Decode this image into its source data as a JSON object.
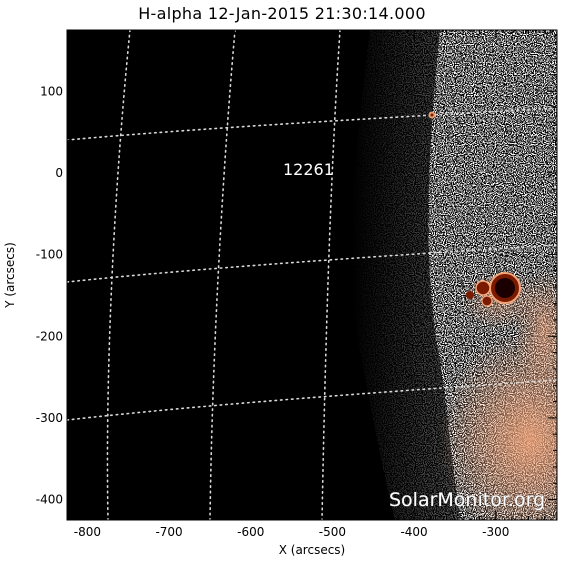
{
  "title": "H-alpha 12-Jan-2015 21:30:14.000",
  "x_axis": {
    "label": "X (arcsecs)",
    "ticks": [
      "-800",
      "-700",
      "-600",
      "-500",
      "-400",
      "-300"
    ],
    "range": [
      -825,
      -225
    ]
  },
  "y_axis": {
    "label": "Y (arcsecs)",
    "ticks": [
      "100",
      "0",
      "-100",
      "-200",
      "-300",
      "-400"
    ],
    "range": [
      -425,
      175
    ]
  },
  "active_region": {
    "number": "12261",
    "x": -505,
    "y": 10
  },
  "watermark": "SolarMonitor.org",
  "colors": {
    "background": "#000000",
    "limb_noise": "#ffffff",
    "plage": "#f0a070",
    "sunspot": "#7a1a00",
    "sunspot_core": "#1a0000",
    "grid": "#d8d8d8"
  }
}
